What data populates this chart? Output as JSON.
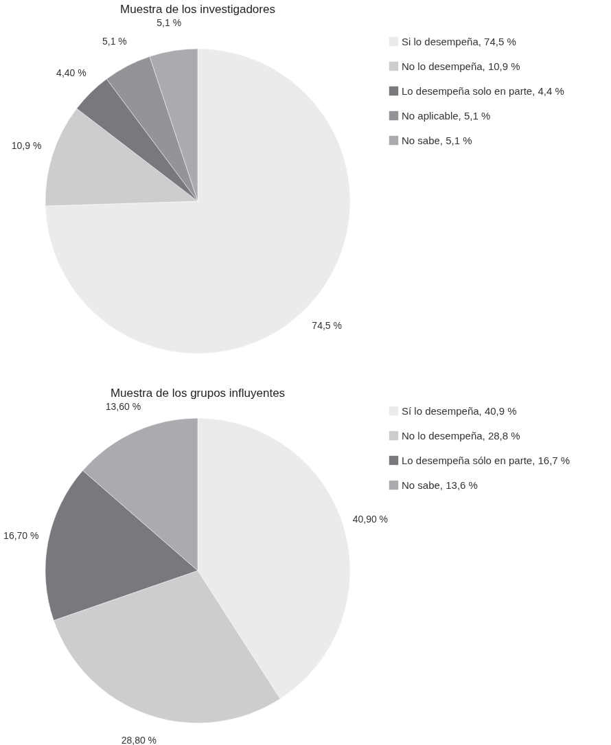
{
  "chart_data": [
    {
      "type": "pie",
      "title": "Muestra de los investigadores",
      "categories": [
        "Si lo desempeña, 74,5 %",
        "No lo desempeña, 10,9 %",
        "Lo desempeña solo en parte, 4,4 %",
        "No aplicable, 5,1 %",
        "No sabe, 5,1 %"
      ],
      "values": [
        74.5,
        10.9,
        4.4,
        5.1,
        5.1
      ],
      "colors": [
        "#ebebed",
        "#cdcdcf",
        "#78797d",
        "#939497",
        "#aaabae"
      ],
      "value_labels": [
        "74,5  %",
        "10,9  %",
        "4,40  %",
        "5,1  %",
        "5,1  %"
      ],
      "legend": "right"
    },
    {
      "type": "pie",
      "title": "Muestra de los grupos influyentes",
      "categories": [
        "Sí lo desempeña, 40,9 %",
        "No lo desempeña, 28,8 %",
        "Lo desempeña sólo en parte, 16,7 %",
        "No sabe, 13,6 %"
      ],
      "values": [
        40.9,
        28.8,
        16.7,
        13.6
      ],
      "colors": [
        "#ebebed",
        "#cdcdcf",
        "#78797d",
        "#aaabae"
      ],
      "value_labels": [
        "40,90 %",
        "28,80 %",
        "16,70 %",
        "13,60 %"
      ],
      "legend": "right"
    }
  ]
}
